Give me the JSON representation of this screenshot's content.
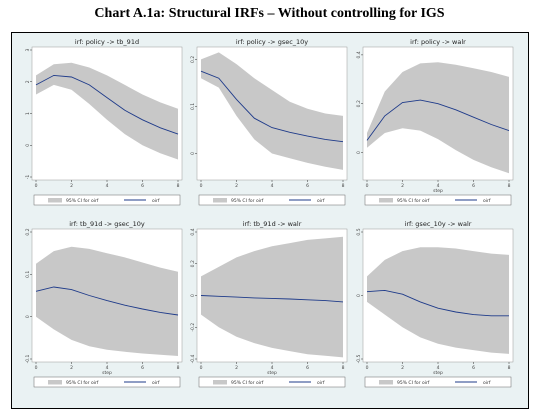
{
  "title": "Chart A.1a: Structural IRFs – Without controlling for IGS",
  "legend": {
    "band_label": "95% CI for oirf",
    "line_label": "oirf"
  },
  "colors": {
    "band": "#c8c8c8",
    "line": "#1f3b8a",
    "plot_bg": "#ffffff",
    "frame_bg": "#eaf2f3",
    "axis": "#000000"
  },
  "chart_data": [
    {
      "type": "line",
      "title": "irf: policy -> tb_91d",
      "xlabel": "",
      "x": [
        0,
        1,
        2,
        3,
        4,
        5,
        6,
        7,
        8
      ],
      "xticks": [
        0,
        2,
        4,
        6,
        8
      ],
      "ylim": [
        -1,
        3
      ],
      "yticks": [
        -1,
        0,
        1,
        2,
        3
      ],
      "series": [
        {
          "name": "oirf",
          "values": [
            1.9,
            2.2,
            2.15,
            1.9,
            1.5,
            1.1,
            0.8,
            0.55,
            0.35
          ]
        }
      ],
      "ci_lower": [
        1.6,
        1.9,
        1.75,
        1.3,
        0.8,
        0.35,
        0.0,
        -0.25,
        -0.45
      ],
      "ci_upper": [
        2.2,
        2.55,
        2.6,
        2.45,
        2.2,
        1.9,
        1.6,
        1.35,
        1.15
      ]
    },
    {
      "type": "line",
      "title": "irf: policy -> gsec_10y",
      "xlabel": "",
      "x": [
        0,
        1,
        2,
        3,
        4,
        5,
        6,
        7,
        8
      ],
      "xticks": [
        0,
        2,
        4,
        6,
        8
      ],
      "ylim": [
        -0.05,
        0.22
      ],
      "yticks": [
        0,
        0.1,
        0.2
      ],
      "series": [
        {
          "name": "oirf",
          "values": [
            0.175,
            0.16,
            0.115,
            0.075,
            0.055,
            0.045,
            0.037,
            0.03,
            0.025
          ]
        }
      ],
      "ci_lower": [
        0.16,
        0.14,
        0.08,
        0.03,
        0.0,
        -0.01,
        -0.02,
        -0.028,
        -0.035
      ],
      "ci_upper": [
        0.2,
        0.215,
        0.19,
        0.16,
        0.135,
        0.11,
        0.095,
        0.085,
        0.08
      ]
    },
    {
      "type": "line",
      "title": "irf: policy -> walr",
      "xlabel": "step",
      "x": [
        0,
        1,
        2,
        3,
        4,
        5,
        6,
        7,
        8
      ],
      "xticks": [
        0,
        2,
        4,
        6,
        8
      ],
      "ylim": [
        -0.1,
        0.42
      ],
      "yticks": [
        0,
        0.2,
        0.4
      ],
      "series": [
        {
          "name": "oirf",
          "values": [
            0.05,
            0.15,
            0.205,
            0.215,
            0.2,
            0.175,
            0.145,
            0.115,
            0.09
          ]
        }
      ],
      "ci_lower": [
        0.02,
        0.08,
        0.1,
        0.09,
        0.055,
        0.01,
        -0.03,
        -0.06,
        -0.085
      ],
      "ci_upper": [
        0.08,
        0.25,
        0.33,
        0.365,
        0.37,
        0.36,
        0.345,
        0.33,
        0.31
      ]
    },
    {
      "type": "line",
      "title": "irf: tb_91d -> gsec_10y",
      "xlabel": "step",
      "x": [
        0,
        1,
        2,
        3,
        4,
        5,
        6,
        7,
        8
      ],
      "xticks": [
        0,
        2,
        4,
        6,
        8
      ],
      "ylim": [
        -0.1,
        0.2
      ],
      "yticks": [
        -0.1,
        0,
        0.1,
        0.2
      ],
      "series": [
        {
          "name": "oirf",
          "values": [
            0.06,
            0.07,
            0.064,
            0.05,
            0.038,
            0.027,
            0.018,
            0.01,
            0.004
          ]
        }
      ],
      "ci_lower": [
        0.0,
        -0.03,
        -0.055,
        -0.07,
        -0.078,
        -0.083,
        -0.087,
        -0.09,
        -0.093
      ],
      "ci_upper": [
        0.125,
        0.155,
        0.165,
        0.16,
        0.15,
        0.14,
        0.128,
        0.116,
        0.106
      ]
    },
    {
      "type": "line",
      "title": "irf: tb_91d -> walr",
      "xlabel": "step",
      "x": [
        0,
        1,
        2,
        3,
        4,
        5,
        6,
        7,
        8
      ],
      "xticks": [
        0,
        2,
        4,
        6,
        8
      ],
      "ylim": [
        -0.4,
        0.4
      ],
      "yticks": [
        -0.4,
        -0.2,
        0,
        0.2,
        0.4
      ],
      "series": [
        {
          "name": "oirf",
          "values": [
            0.0,
            -0.005,
            -0.01,
            -0.015,
            -0.018,
            -0.022,
            -0.027,
            -0.032,
            -0.04
          ]
        }
      ],
      "ci_lower": [
        -0.12,
        -0.2,
        -0.26,
        -0.3,
        -0.33,
        -0.35,
        -0.37,
        -0.38,
        -0.39
      ],
      "ci_upper": [
        0.12,
        0.18,
        0.24,
        0.28,
        0.31,
        0.33,
        0.35,
        0.36,
        0.37
      ]
    },
    {
      "type": "line",
      "title": "irf: gsec_10y -> walr",
      "xlabel": "step",
      "x": [
        0,
        1,
        2,
        3,
        4,
        5,
        6,
        7,
        8
      ],
      "xticks": [
        0,
        2,
        4,
        6,
        8
      ],
      "ylim": [
        -0.5,
        0.5
      ],
      "yticks": [
        -0.5,
        0,
        0.5
      ],
      "series": [
        {
          "name": "oirf",
          "values": [
            0.03,
            0.04,
            0.01,
            -0.05,
            -0.1,
            -0.13,
            -0.15,
            -0.16,
            -0.16
          ]
        }
      ],
      "ci_lower": [
        -0.05,
        -0.15,
        -0.25,
        -0.33,
        -0.38,
        -0.41,
        -0.43,
        -0.45,
        -0.46
      ],
      "ci_upper": [
        0.15,
        0.28,
        0.35,
        0.38,
        0.38,
        0.37,
        0.35,
        0.33,
        0.32
      ]
    }
  ]
}
